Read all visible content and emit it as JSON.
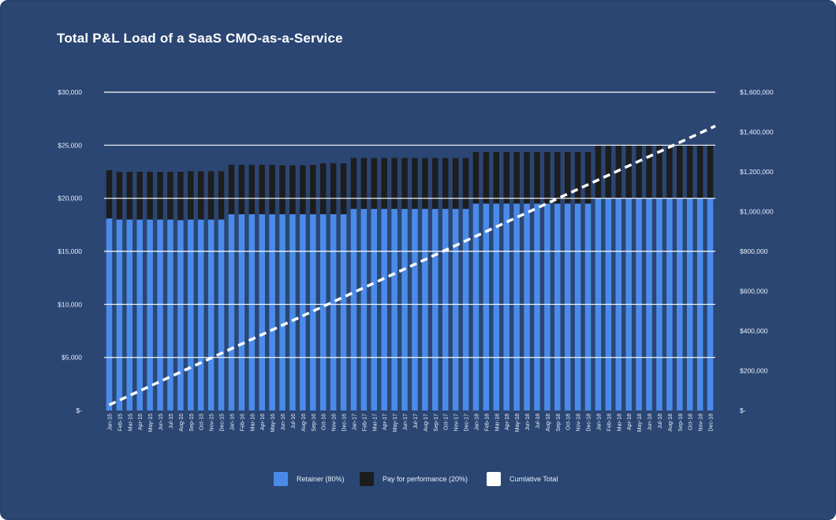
{
  "colors": {
    "background": "#2b4672",
    "retainer": "#4a8bea",
    "performance": "#1d1d1f",
    "cumulative": "#ffffff",
    "grid": "#ffffff"
  },
  "legend": {
    "retainer": "Retainer (80%)",
    "performance": "Pay for performance (20%)",
    "cumulative": "Cumlative Total"
  },
  "chart_data": {
    "type": "bar",
    "title": "Total P&L Load of a SaaS CMO-as-a-Service",
    "stacked": true,
    "categories": [
      "Jan-15",
      "Feb-15",
      "Mar-15",
      "Apr-15",
      "May-15",
      "Jun-15",
      "Jul-15",
      "Aug-15",
      "Sep-15",
      "Oct-15",
      "Nov-15",
      "Dec-15",
      "Jan-16",
      "Feb-16",
      "Mar-16",
      "Apr-16",
      "May-16",
      "Jun-16",
      "Jul-16",
      "Aug-16",
      "Sep-16",
      "Oct-16",
      "Nov-16",
      "Dec-16",
      "Jan-17",
      "Feb-17",
      "Mar-17",
      "Apr-17",
      "May-17",
      "Jun-17",
      "Jul-17",
      "Aug-17",
      "Sep-17",
      "Oct-17",
      "Nov-17",
      "Dec-17",
      "Jan-18",
      "Feb-18",
      "Mar-18",
      "Apr-18",
      "May-18",
      "Jun-18",
      "Jul-18",
      "Aug-18",
      "Sep-18",
      "Oct-18",
      "Nov-18",
      "Dec-18",
      "Jan-18",
      "Feb-18",
      "Mar-18",
      "Apr-18",
      "May-18",
      "Jun-18",
      "Jul-18",
      "Aug-18",
      "Sep-18",
      "Oct-18",
      "Nov-18",
      "Dec-18"
    ],
    "series": [
      {
        "name": "Retainer (80%)",
        "axis": "left",
        "values": [
          18100,
          18000,
          18000,
          18000,
          18000,
          18000,
          18000,
          17950,
          18000,
          18000,
          18000,
          18000,
          18500,
          18500,
          18500,
          18500,
          18500,
          18500,
          18500,
          18500,
          18500,
          18500,
          18500,
          18500,
          19000,
          19000,
          19000,
          19000,
          19000,
          19000,
          19000,
          19000,
          19000,
          19000,
          19000,
          19000,
          19500,
          19500,
          19500,
          19500,
          19500,
          19500,
          19500,
          19500,
          19500,
          19500,
          19500,
          19500,
          20000,
          20000,
          20000,
          20000,
          20000,
          20000,
          20000,
          20000,
          20000,
          20000,
          20000,
          20000
        ]
      },
      {
        "name": "Pay for performance (20%)",
        "axis": "left",
        "values": [
          4550,
          4500,
          4500,
          4500,
          4500,
          4500,
          4500,
          4550,
          4550,
          4550,
          4550,
          4550,
          4650,
          4650,
          4650,
          4650,
          4650,
          4600,
          4600,
          4600,
          4650,
          4800,
          4800,
          4800,
          4800,
          4800,
          4800,
          4800,
          4800,
          4800,
          4800,
          4800,
          4800,
          4800,
          4800,
          4800,
          4850,
          4850,
          4850,
          4850,
          4850,
          4850,
          4850,
          4850,
          4850,
          4850,
          4850,
          4850,
          5000,
          5000,
          5000,
          5000,
          5000,
          5000,
          5000,
          5000,
          5000,
          5000,
          5000,
          5000
        ]
      },
      {
        "name": "Cumlative Total",
        "type": "line",
        "axis": "right",
        "x_start": "Jan-15",
        "x_end": "Dec-18",
        "start_value": 28000,
        "end_value": 1430000
      }
    ],
    "ylim": [
      0,
      30000
    ],
    "yticks": [
      "$-",
      "$5,000",
      "$10,000",
      "$15,000",
      "$20,000",
      "$25,000",
      "$30,000"
    ],
    "ytick_values": [
      0,
      5000,
      10000,
      15000,
      20000,
      25000,
      30000
    ],
    "y2lim": [
      0,
      1600000
    ],
    "y2ticks": [
      "$-",
      "$200,000",
      "$400,000",
      "$600,000",
      "$800,000",
      "$1,000,000",
      "$1,200,000",
      "$1,400,000",
      "$1,600,000"
    ],
    "y2tick_values": [
      0,
      200000,
      400000,
      600000,
      800000,
      1000000,
      1200000,
      1400000,
      1600000
    ],
    "gridlines": [
      5000,
      10000,
      15000,
      20000,
      25000,
      30000
    ],
    "xlabel": "",
    "ylabel": "",
    "legend_position": "bottom"
  }
}
